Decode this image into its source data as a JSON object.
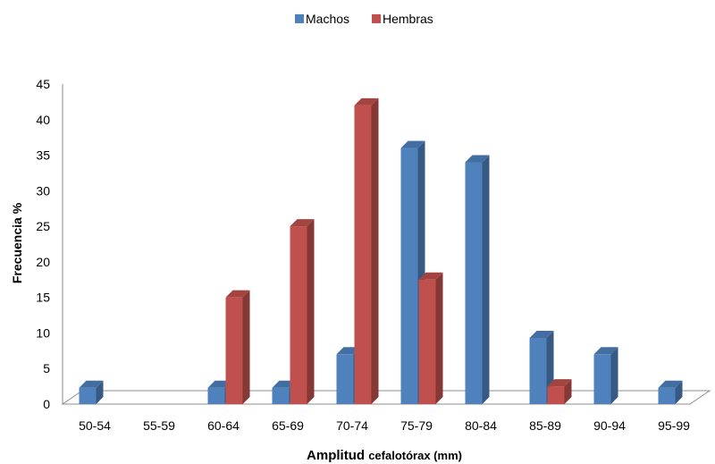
{
  "chart_data": {
    "type": "bar",
    "style": "3d-clustered-column",
    "title": "",
    "xlabel": "Amplitud cefalotórax (mm)",
    "xlabel_main": "Amplitud",
    "xlabel_rest": "cefalotórax (mm)",
    "ylabel": "Frecuencia %",
    "ylim": [
      0,
      45
    ],
    "yticks": [
      0,
      5,
      10,
      15,
      20,
      25,
      30,
      35,
      40,
      45
    ],
    "grid": false,
    "legend_position": "top-center",
    "categories": [
      "50-54",
      "55-59",
      "60-64",
      "65-69",
      "70-74",
      "75-79",
      "80-84",
      "85-89",
      "90-94",
      "95-99"
    ],
    "series": [
      {
        "name": "Machos",
        "color": "#4F81BD",
        "values": [
          2.3,
          0,
          2.3,
          2.3,
          7,
          36,
          34,
          9.3,
          7,
          2.3
        ]
      },
      {
        "name": "Hembras",
        "color": "#C0504D",
        "values": [
          0,
          0,
          15,
          25,
          42,
          17.5,
          0,
          2.5,
          0,
          0
        ]
      }
    ]
  }
}
